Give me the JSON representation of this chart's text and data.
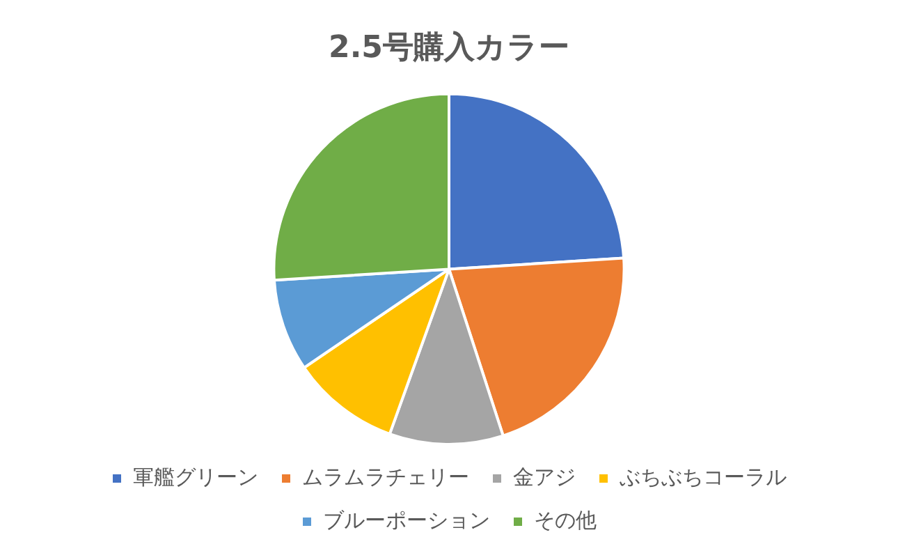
{
  "chart_data": {
    "type": "pie",
    "title": "2.5号購入カラー",
    "categories": [
      "軍艦グリーン",
      "ムラムラチェリー",
      "金アジ",
      "ぶちぶちコーラル",
      "ブルーポーション",
      "その他"
    ],
    "values": [
      24,
      21,
      10.5,
      10,
      8.5,
      26
    ],
    "colors": [
      "#4472c4",
      "#ed7d31",
      "#a5a5a5",
      "#ffc000",
      "#5b9bd5",
      "#70ad47"
    ],
    "legend": "bottom"
  }
}
